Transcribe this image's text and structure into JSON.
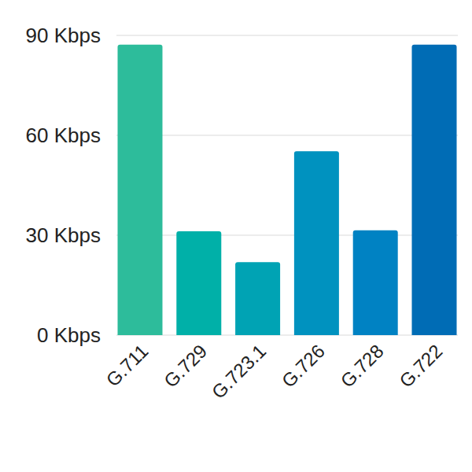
{
  "chart_data": {
    "type": "bar",
    "categories": [
      "G.711",
      "G.729",
      "G.723.1",
      "G.726",
      "G.728",
      "G.722"
    ],
    "values": [
      87.2,
      31.2,
      21.9,
      55.2,
      31.5,
      87.2
    ],
    "colors": [
      "#2dbc9b",
      "#00b0a8",
      "#00a3b4",
      "#0092bf",
      "#0082c3",
      "#006cb5"
    ],
    "ylim": [
      0,
      90
    ],
    "yticks": [
      {
        "value": 0,
        "label": "0 Kbps"
      },
      {
        "value": 30,
        "label": "30 Kbps"
      },
      {
        "value": 60,
        "label": "60 Kbps"
      },
      {
        "value": 90,
        "label": "90 Kbps"
      }
    ],
    "grid": true
  }
}
